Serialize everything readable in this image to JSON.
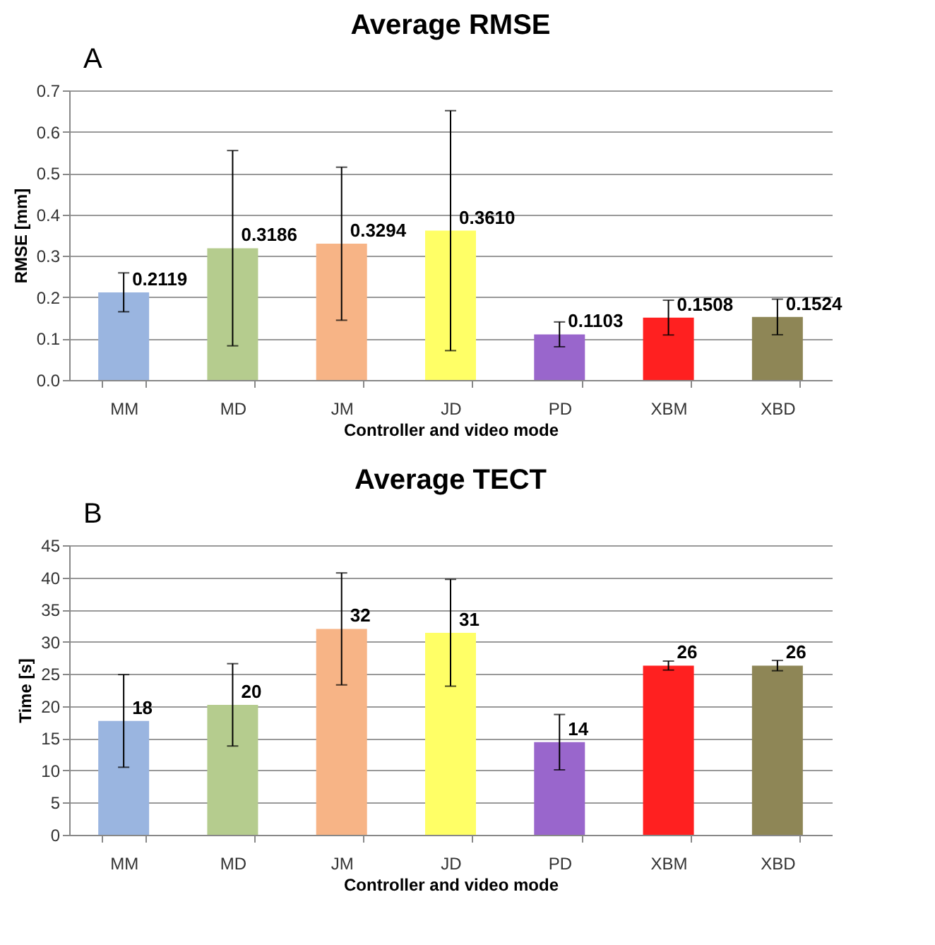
{
  "chart_data": [
    {
      "type": "bar",
      "title": "Average RMSE",
      "xlabel": "Controller and video mode",
      "ylabel": "RMSE [mm]",
      "annotations": [
        "A"
      ],
      "categories": [
        "MM",
        "MD",
        "JM",
        "JD",
        "PD",
        "XBM",
        "XBD"
      ],
      "values": [
        0.2119,
        0.3186,
        0.3294,
        0.361,
        0.1103,
        0.1508,
        0.1524
      ],
      "value_labels": [
        "0.2119",
        "0.3186",
        "0.3294",
        "0.3610",
        "0.1103",
        "0.1508",
        "0.1524"
      ],
      "errors": [
        0.047,
        0.236,
        0.185,
        0.29,
        0.03,
        0.042,
        0.043
      ],
      "colors": [
        "#9ab5e0",
        "#b5cc8e",
        "#f7b486",
        "#ffff66",
        "#9966cc",
        "#ff2020",
        "#8e8656"
      ],
      "ylim": [
        0,
        0.7
      ],
      "yticks": [
        {
          "value": 0,
          "label": "0.0"
        },
        {
          "value": 0.1,
          "label": "0.1"
        },
        {
          "value": 0.2,
          "label": "0.2"
        },
        {
          "value": 0.3,
          "label": "0.3"
        },
        {
          "value": 0.4,
          "label": "0.4"
        },
        {
          "value": 0.5,
          "label": "0.5"
        },
        {
          "value": 0.6,
          "label": "0.6"
        },
        {
          "value": 0.7,
          "label": "0.7"
        }
      ],
      "grid": "y"
    },
    {
      "type": "bar",
      "title": "Average TECT",
      "xlabel": "Controller and video mode",
      "ylabel": "Time [s]",
      "annotations": [
        "B"
      ],
      "categories": [
        "MM",
        "MD",
        "JM",
        "JD",
        "PD",
        "XBM",
        "XBD"
      ],
      "values": [
        17.7,
        20.2,
        32,
        31.4,
        14.4,
        26.3,
        26.3
      ],
      "value_labels": [
        "18",
        "20",
        "32",
        "31",
        "14",
        "26",
        "26"
      ],
      "errors": [
        7.2,
        6.4,
        8.7,
        8.3,
        4.3,
        0.7,
        0.8
      ],
      "colors": [
        "#9ab5e0",
        "#b5cc8e",
        "#f7b486",
        "#ffff66",
        "#9966cc",
        "#ff2020",
        "#8e8656"
      ],
      "ylim": [
        0,
        45
      ],
      "yticks": [
        0,
        5,
        10,
        15,
        20,
        25,
        30,
        35,
        40,
        45
      ],
      "grid": "y"
    }
  ]
}
